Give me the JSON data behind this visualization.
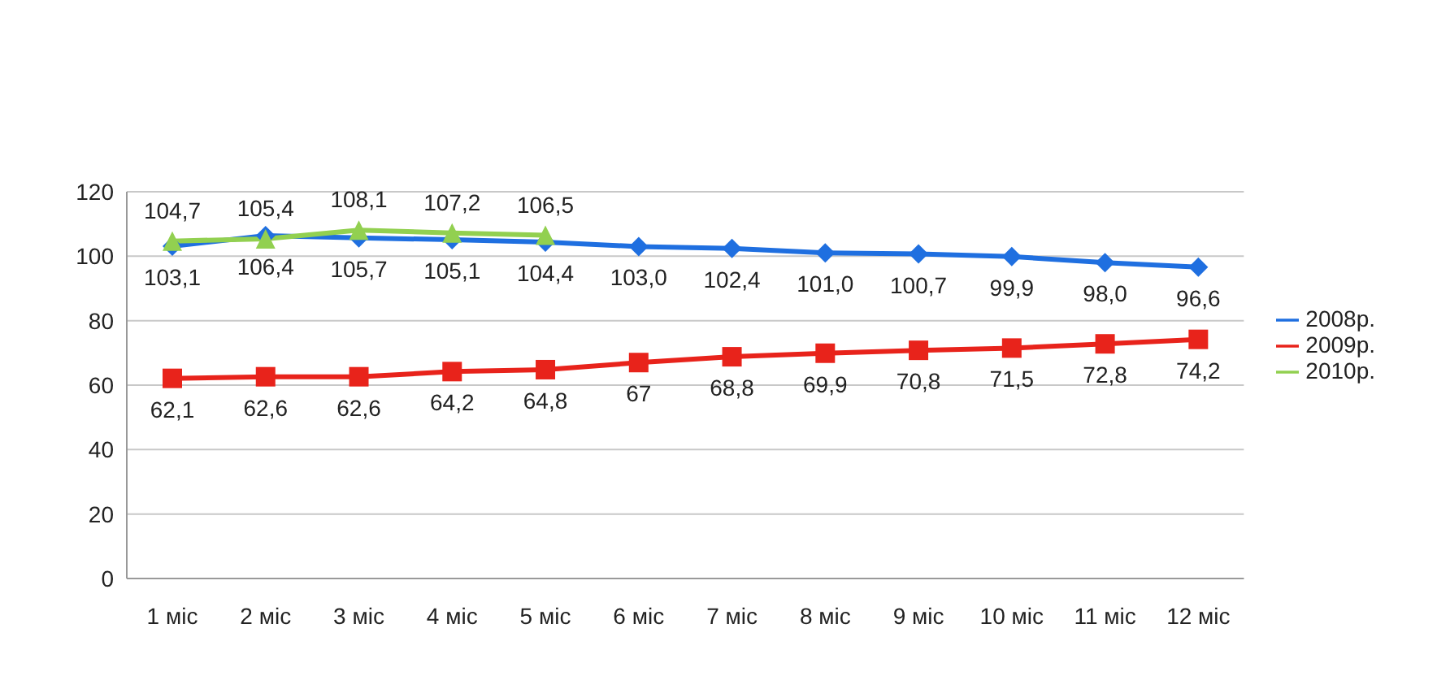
{
  "chart_data": {
    "type": "line",
    "categories": [
      "1 міс",
      "2 міс",
      "3 міс",
      "4 міс",
      "5 міс",
      "6 міс",
      "7 міс",
      "8 міс",
      "9 міс",
      "10 міс",
      "11 міс",
      "12 міс"
    ],
    "ylim": [
      0,
      120
    ],
    "yticks": [
      0,
      20,
      40,
      60,
      80,
      100,
      120
    ],
    "grid": "y",
    "legend": "right",
    "series": [
      {
        "name": "2008р.",
        "color": "#1f6fe0",
        "marker": "diamond",
        "values": [
          103.1,
          106.4,
          105.7,
          105.1,
          104.4,
          103.0,
          102.4,
          101.0,
          100.7,
          99.9,
          98.0,
          96.6
        ],
        "value_labels": [
          "103,1",
          "106,4",
          "105,7",
          "105,1",
          "104,4",
          "103,0",
          "102,4",
          "101,0",
          "100,7",
          "99,9",
          "98,0",
          "96,6"
        ]
      },
      {
        "name": "2009р.",
        "color": "#e8231b",
        "marker": "square",
        "values": [
          62.1,
          62.6,
          62.6,
          64.2,
          64.8,
          67,
          68.8,
          69.9,
          70.8,
          71.5,
          72.8,
          74.2
        ],
        "value_labels": [
          "62,1",
          "62,6",
          "62,6",
          "64,2",
          "64,8",
          "67",
          "68,8",
          "69,9",
          "70,8",
          "71,5",
          "72,8",
          "74,2"
        ]
      },
      {
        "name": "2010р.",
        "color": "#92d050",
        "marker": "triangle",
        "values": [
          104.7,
          105.4,
          108.1,
          107.2,
          106.5,
          null,
          null,
          null,
          null,
          null,
          null,
          null
        ],
        "value_labels": [
          "104,7",
          "105,4",
          "108,1",
          "107,2",
          "106,5",
          null,
          null,
          null,
          null,
          null,
          null,
          null
        ]
      }
    ]
  }
}
